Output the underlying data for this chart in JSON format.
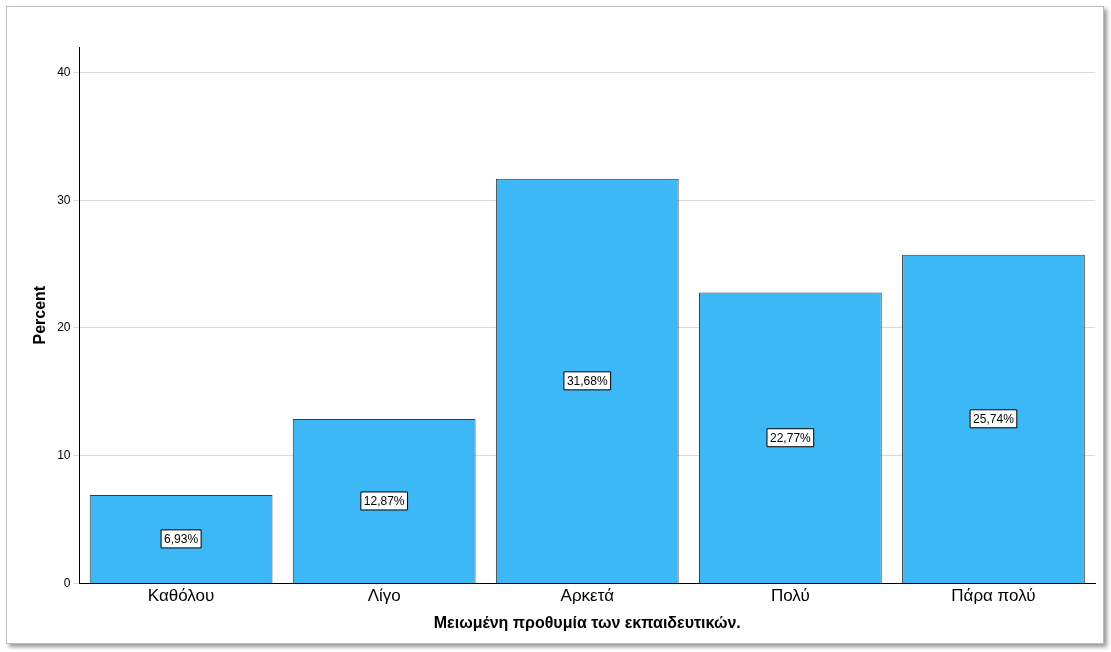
{
  "chart_data": {
    "type": "bar",
    "xlabel": "Μειωμένη προθυμία των εκπαιδευτικών.",
    "ylabel": "Percent",
    "categories": [
      "Καθόλου",
      "Λίγο",
      "Αρκετά",
      "Πολύ",
      "Πάρα πολύ"
    ],
    "values": [
      6.93,
      12.87,
      31.68,
      22.77,
      25.74
    ],
    "value_labels": [
      "6,93%",
      "12,87%",
      "31,68%",
      "22,77%",
      "25,74%"
    ],
    "color": "#3cb8f6",
    "ylim": [
      0,
      42
    ],
    "yticks": [
      0,
      10,
      20,
      30,
      40
    ],
    "grid": "y",
    "legend": false
  }
}
